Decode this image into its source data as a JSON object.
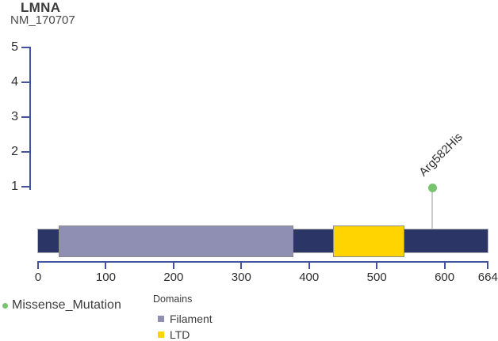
{
  "header": {
    "gene": "LMNA",
    "transcript": "NM_170707"
  },
  "chart_data": {
    "type": "lollipop",
    "title": "LMNA",
    "subtitle": "NM_170707",
    "protein_length": 664,
    "x_ticks": [
      0,
      100,
      200,
      300,
      400,
      500,
      600,
      664
    ],
    "y_ticks": [
      1,
      2,
      3,
      4,
      5
    ],
    "ylim": [
      0,
      5
    ],
    "xlim": [
      0,
      664
    ],
    "mutations": [
      {
        "label": "Arg582His",
        "position": 582,
        "count": 1,
        "type": "Missense_Mutation",
        "color": "#77c36e"
      }
    ],
    "domains": [
      {
        "name": "Filament",
        "start": 30,
        "end": 377,
        "color": "#8f8fb4"
      },
      {
        "name": "LTD",
        "start": 435,
        "end": 541,
        "color": "#ffd400"
      }
    ]
  },
  "legend": {
    "mutation_types": [
      {
        "label": "Missense_Mutation",
        "color": "#77c36e"
      }
    ],
    "domains_title": "Domains",
    "domain_items": [
      {
        "label": "Filament",
        "color": "#8f8fb4"
      },
      {
        "label": "LTD",
        "color": "#ffd400"
      }
    ]
  },
  "colors": {
    "backbone": "#2b3566",
    "axis": "#4453a0",
    "stem": "#cccccc",
    "text": "#3d3d3d"
  }
}
